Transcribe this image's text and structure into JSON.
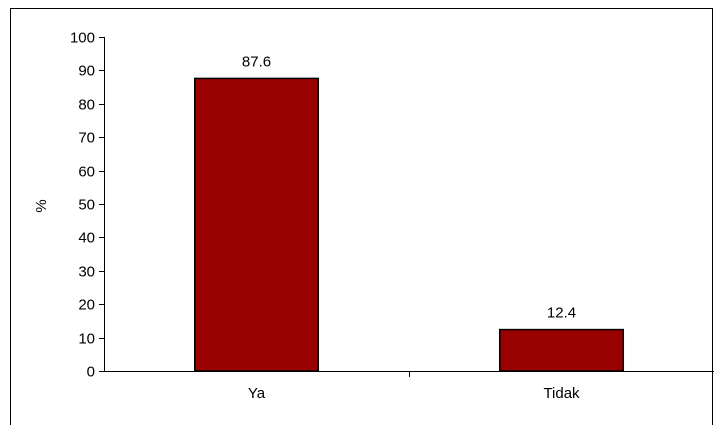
{
  "chart_data": {
    "type": "bar",
    "categories": [
      "Ya",
      "Tidak"
    ],
    "values": [
      87.6,
      12.4
    ],
    "data_labels": [
      "87.6",
      "12.4"
    ],
    "title": "",
    "xlabel": "",
    "ylabel": "%",
    "ylim": [
      0,
      100
    ],
    "y_ticks": [
      0,
      10,
      20,
      30,
      40,
      50,
      60,
      70,
      80,
      90,
      100
    ],
    "grid": false,
    "legend": "none",
    "colors": {
      "bar": "#990000",
      "bar_stroke": "#000000",
      "axis": "#000000",
      "background": "#ffffff"
    }
  }
}
